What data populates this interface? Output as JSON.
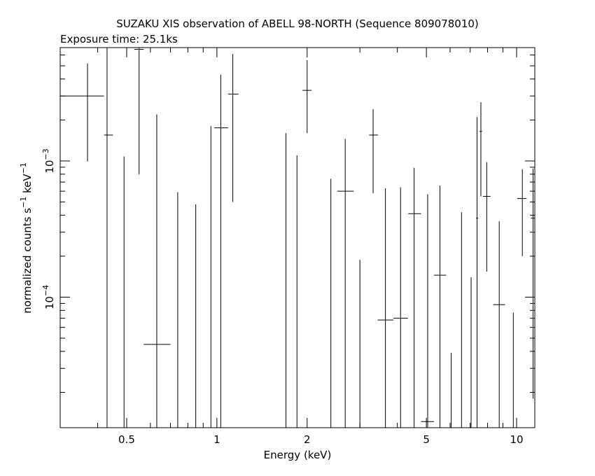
{
  "chart_data": {
    "type": "scatter",
    "title": "SUZAKU XIS observation of ABELL 98-NORTH (Sequence 809078010)",
    "subtitle": "Exposure time: 25.1ks",
    "xlabel": "Energy (keV)",
    "ylabel": "normalized counts s",
    "ylabel_sup1": "−1",
    "ylabel_mid": " keV",
    "ylabel_sup2": "−1",
    "x_scale": "log",
    "y_scale": "log",
    "xlim": [
      0.3,
      11.5
    ],
    "ylim": [
      1.1e-05,
      0.0068
    ],
    "x_ticks": [
      {
        "value": 0.5,
        "label": "0.5"
      },
      {
        "value": 1,
        "label": "1"
      },
      {
        "value": 2,
        "label": "2"
      },
      {
        "value": 5,
        "label": "5"
      },
      {
        "value": 10,
        "label": "10"
      }
    ],
    "y_ticks": [
      {
        "value": 0.001,
        "base": "10",
        "exp": "−3"
      },
      {
        "value": 0.0001,
        "base": "10",
        "exp": "−4"
      }
    ],
    "grid": false,
    "marker": "crosshair-errorbar",
    "points": [
      {
        "x": 0.37,
        "xlo": 0.3,
        "xhi": 0.42,
        "y": 0.003,
        "ylo": 0.00099,
        "yhi": 0.0052
      },
      {
        "x": 0.43,
        "xlo": 0.42,
        "xhi": 0.45,
        "y": 0.00155,
        "ylo": 1.1e-05,
        "yhi": 0.0068
      },
      {
        "x": 0.49,
        "y": 1.1e-05,
        "ylo": 1.1e-05,
        "yhi": 0.00108
      },
      {
        "x": 0.55,
        "xlo": 0.53,
        "xhi": 0.57,
        "y": 0.0066,
        "ylo": 0.0008,
        "yhi": 0.0068
      },
      {
        "x": 0.63,
        "xlo": 0.57,
        "xhi": 0.7,
        "y": 4.5e-05,
        "ylo": 1.1e-05,
        "yhi": 0.0022
      },
      {
        "x": 0.74,
        "y": 1.1e-05,
        "ylo": 1.1e-05,
        "yhi": 0.00059
      },
      {
        "x": 0.85,
        "y": 1.1e-05,
        "ylo": 1.1e-05,
        "yhi": 0.00048
      },
      {
        "x": 0.955,
        "y": 1.1e-05,
        "ylo": 1.1e-05,
        "yhi": 0.0018
      },
      {
        "x": 1.03,
        "xlo": 0.98,
        "xhi": 1.09,
        "y": 0.00175,
        "ylo": 1.1e-05,
        "yhi": 0.0043
      },
      {
        "x": 1.13,
        "xlo": 1.09,
        "xhi": 1.18,
        "y": 0.0031,
        "ylo": 0.0005,
        "yhi": 0.0061
      },
      {
        "x": 1.7,
        "y": 1.1e-05,
        "ylo": 1.1e-05,
        "yhi": 0.0016
      },
      {
        "x": 1.85,
        "y": 1.1e-05,
        "ylo": 1.1e-05,
        "yhi": 0.0011
      },
      {
        "x": 2.0,
        "xlo": 1.93,
        "xhi": 2.07,
        "y": 0.0033,
        "ylo": 0.0016,
        "yhi": 0.0055
      },
      {
        "x": 2.4,
        "y": 1.1e-05,
        "ylo": 1.1e-05,
        "yhi": 0.00074
      },
      {
        "x": 2.68,
        "xlo": 2.52,
        "xhi": 2.86,
        "y": 0.0006,
        "ylo": 1.1e-05,
        "yhi": 0.00145
      },
      {
        "x": 3.0,
        "y": 1.1e-05,
        "ylo": 1.1e-05,
        "yhi": 0.000188
      },
      {
        "x": 3.32,
        "xlo": 3.22,
        "xhi": 3.45,
        "y": 0.00155,
        "ylo": 0.00058,
        "yhi": 0.0024
      },
      {
        "x": 3.65,
        "xlo": 3.44,
        "xhi": 3.88,
        "y": 6.8e-05,
        "ylo": 1.1e-05,
        "yhi": 0.00063
      },
      {
        "x": 4.1,
        "xlo": 3.88,
        "xhi": 4.34,
        "y": 7e-05,
        "ylo": 1.1e-05,
        "yhi": 0.00064
      },
      {
        "x": 4.55,
        "xlo": 4.35,
        "xhi": 4.8,
        "y": 0.00041,
        "ylo": 1.1e-05,
        "yhi": 0.00089
      },
      {
        "x": 5.05,
        "xlo": 4.8,
        "xhi": 5.3,
        "y": 1.22e-05,
        "ylo": 1.1e-05,
        "yhi": 0.00057
      },
      {
        "x": 5.55,
        "xlo": 5.3,
        "xhi": 5.82,
        "y": 0.000145,
        "ylo": 1.1e-05,
        "yhi": 0.00066
      },
      {
        "x": 6.05,
        "y": 1.1e-05,
        "ylo": 1.1e-05,
        "yhi": 3.9e-05
      },
      {
        "x": 6.55,
        "y": 1.1e-05,
        "ylo": 1.1e-05,
        "yhi": 0.00042
      },
      {
        "x": 7.05,
        "y": 1.1e-05,
        "ylo": 1.1e-05,
        "yhi": 0.00014
      },
      {
        "x": 7.38,
        "xlo": 7.32,
        "xhi": 7.45,
        "y": 0.00038,
        "ylo": 1.1e-05,
        "yhi": 0.0021
      },
      {
        "x": 7.6,
        "xlo": 7.53,
        "xhi": 7.67,
        "y": 0.00165,
        "ylo": 0.00055,
        "yhi": 0.0027
      },
      {
        "x": 7.95,
        "xlo": 7.72,
        "xhi": 8.18,
        "y": 0.00055,
        "ylo": 0.000154,
        "yhi": 0.00098
      },
      {
        "x": 8.75,
        "xlo": 8.35,
        "xhi": 9.15,
        "y": 8.8e-05,
        "ylo": 1.1e-05,
        "yhi": 0.00036
      },
      {
        "x": 9.75,
        "y": 1.1e-05,
        "ylo": 1.1e-05,
        "yhi": 7.7e-05
      },
      {
        "x": 10.45,
        "xlo": 10.05,
        "xhi": 10.8,
        "y": 0.00053,
        "ylo": 0.0002,
        "yhi": 0.00087
      },
      {
        "x": 11.35,
        "xlo": 11.15,
        "xhi": 11.5,
        "y": 0.00038,
        "ylo": 1.8e-05,
        "yhi": 0.00088
      }
    ]
  }
}
